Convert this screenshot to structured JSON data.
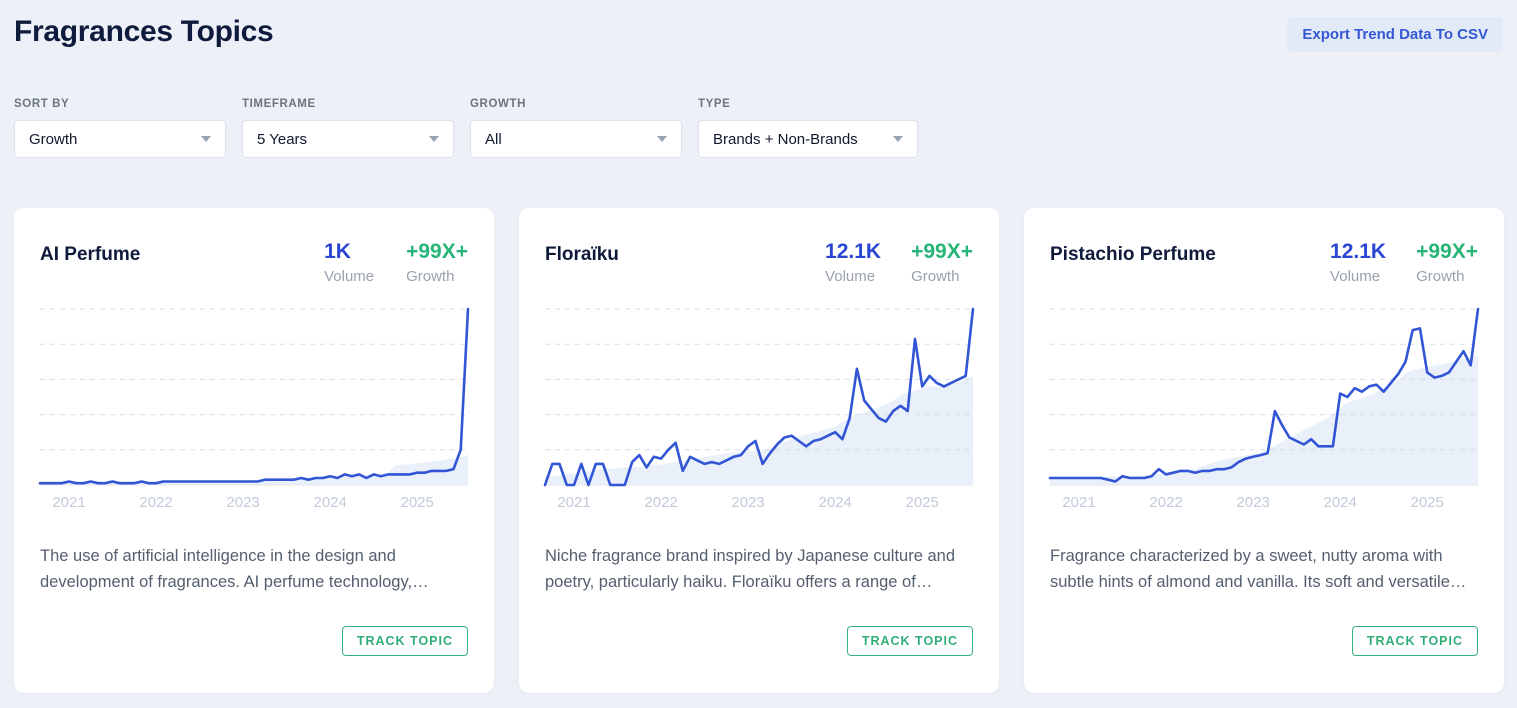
{
  "page": {
    "title": "Fragrances Topics",
    "export_button_label": "Export Trend Data To CSV"
  },
  "filters": [
    {
      "label": "SORT BY",
      "value": "Growth"
    },
    {
      "label": "TIMEFRAME",
      "value": "5 Years"
    },
    {
      "label": "GROWTH",
      "value": "All"
    },
    {
      "label": "TYPE",
      "value": "Brands + Non-Brands"
    }
  ],
  "cards": [
    {
      "title": "AI Perfume",
      "volume": "1K",
      "volume_label": "Volume",
      "growth": "+99X+",
      "growth_label": "Growth",
      "description": "The use of artificial intelligence in the design and development of fragrances. AI perfume technology,…",
      "track_button": "TRACK TOPIC"
    },
    {
      "title": "Floraïku",
      "volume": "12.1K",
      "volume_label": "Volume",
      "growth": "+99X+",
      "growth_label": "Growth",
      "description": "Niche fragrance brand inspired by Japanese culture and poetry, particularly haiku. Floraïku offers a range of…",
      "track_button": "TRACK TOPIC"
    },
    {
      "title": "Pistachio Perfume",
      "volume": "12.1K",
      "volume_label": "Volume",
      "growth": "+99X+",
      "growth_label": "Growth",
      "description": "Fragrance characterized by a sweet, nutty aroma with subtle hints of almond and vanilla. Its soft and versatile…",
      "track_button": "TRACK TOPIC"
    }
  ],
  "chart_data": [
    {
      "type": "line",
      "title": "AI Perfume search volume trend (relative, 5 years)",
      "x_labels": [
        "2021",
        "2022",
        "2023",
        "2024",
        "2025"
      ],
      "x_range": [
        "2020-09",
        "2025-08"
      ],
      "interval": "monthly",
      "ylim": [
        0,
        100
      ],
      "grid": "horizontal-dashed",
      "line_color": "#3155d4",
      "fill": "smoothed-area",
      "values": [
        1,
        1,
        1,
        1,
        2,
        1,
        1,
        2,
        1,
        1,
        2,
        1,
        1,
        1,
        2,
        1,
        1,
        2,
        2,
        2,
        2,
        2,
        2,
        2,
        2,
        2,
        2,
        2,
        2,
        2,
        2,
        3,
        3,
        3,
        3,
        3,
        4,
        3,
        4,
        4,
        5,
        4,
        6,
        5,
        6,
        4,
        6,
        5,
        6,
        6,
        6,
        6,
        7,
        7,
        8,
        8,
        8,
        9,
        20,
        100
      ]
    },
    {
      "type": "line",
      "title": "Floraïku search volume trend (relative, 5 years)",
      "x_labels": [
        "2021",
        "2022",
        "2023",
        "2024",
        "2025"
      ],
      "x_range": [
        "2020-09",
        "2025-08"
      ],
      "interval": "monthly",
      "ylim": [
        0,
        100
      ],
      "grid": "horizontal-dashed",
      "line_color": "#3155d4",
      "fill": "smoothed-area",
      "values": [
        0,
        12,
        12,
        0,
        0,
        12,
        0,
        12,
        12,
        0,
        0,
        0,
        13,
        17,
        10,
        16,
        15,
        20,
        24,
        8,
        16,
        14,
        12,
        13,
        12,
        14,
        16,
        17,
        22,
        25,
        12,
        18,
        23,
        27,
        28,
        25,
        22,
        25,
        26,
        28,
        30,
        26,
        38,
        66,
        48,
        43,
        38,
        36,
        42,
        45,
        42,
        83,
        56,
        62,
        58,
        56,
        58,
        60,
        62,
        100
      ]
    },
    {
      "type": "line",
      "title": "Pistachio Perfume search volume trend (relative, 5 years)",
      "x_labels": [
        "2021",
        "2022",
        "2023",
        "2024",
        "2025"
      ],
      "x_range": [
        "2020-09",
        "2025-08"
      ],
      "interval": "monthly",
      "ylim": [
        0,
        100
      ],
      "grid": "horizontal-dashed",
      "line_color": "#3155d4",
      "fill": "smoothed-area",
      "values": [
        4,
        4,
        4,
        4,
        4,
        4,
        4,
        4,
        3,
        2,
        5,
        4,
        4,
        4,
        5,
        9,
        6,
        7,
        8,
        8,
        7,
        8,
        8,
        9,
        9,
        10,
        13,
        15,
        16,
        17,
        18,
        42,
        34,
        27,
        25,
        23,
        26,
        22,
        22,
        22,
        52,
        50,
        55,
        53,
        56,
        57,
        53,
        58,
        63,
        70,
        88,
        89,
        64,
        61,
        62,
        64,
        70,
        76,
        68,
        100
      ]
    }
  ]
}
